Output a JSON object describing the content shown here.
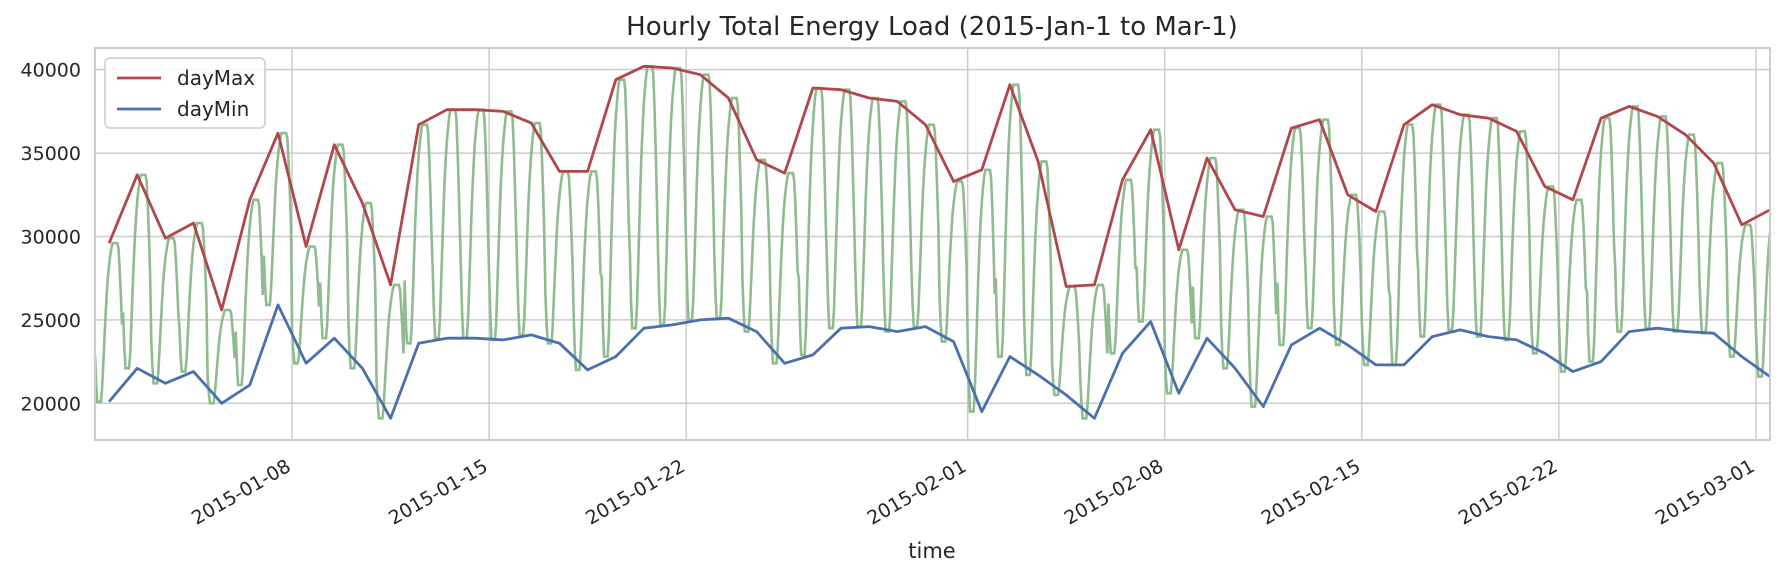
{
  "chart_data": {
    "type": "line",
    "title": "Hourly Total Energy Load (2015-Jan-1 to Mar-1)",
    "xlabel": "time",
    "ylabel": "",
    "xlim": [
      "2015-01-01T00:00",
      "2015-03-01T12:00"
    ],
    "ylim": [
      17800,
      41300
    ],
    "xticks": [
      "2015-01-08",
      "2015-01-15",
      "2015-01-22",
      "2015-02-01",
      "2015-02-08",
      "2015-02-15",
      "2015-02-22",
      "2015-03-01"
    ],
    "yticks": [
      20000,
      25000,
      30000,
      35000,
      40000
    ],
    "grid": true,
    "legend_position": "top-left",
    "colors": {
      "dayMax": "#b0474d",
      "dayMin": "#4c6fae",
      "hourly": "#8fbc8f",
      "grid": "#cccccc",
      "frame": "#cccccc",
      "text": "#262626"
    },
    "hourly_series": {
      "name": "",
      "color": "#8fbc8f",
      "description_note": "hourly load oscillating daily between dayMin and dayMax"
    },
    "series": [
      {
        "name": "dayMax",
        "color": "#b0474d",
        "x": [
          "2015-01-01",
          "2015-01-02",
          "2015-01-03",
          "2015-01-04",
          "2015-01-05",
          "2015-01-06",
          "2015-01-07",
          "2015-01-08",
          "2015-01-09",
          "2015-01-10",
          "2015-01-11",
          "2015-01-12",
          "2015-01-13",
          "2015-01-14",
          "2015-01-15",
          "2015-01-16",
          "2015-01-17",
          "2015-01-18",
          "2015-01-19",
          "2015-01-20",
          "2015-01-21",
          "2015-01-22",
          "2015-01-23",
          "2015-01-24",
          "2015-01-25",
          "2015-01-26",
          "2015-01-27",
          "2015-01-28",
          "2015-01-29",
          "2015-01-30",
          "2015-01-31",
          "2015-02-01",
          "2015-02-02",
          "2015-02-03",
          "2015-02-04",
          "2015-02-05",
          "2015-02-06",
          "2015-02-07",
          "2015-02-08",
          "2015-02-09",
          "2015-02-10",
          "2015-02-11",
          "2015-02-12",
          "2015-02-13",
          "2015-02-14",
          "2015-02-15",
          "2015-02-16",
          "2015-02-17",
          "2015-02-18",
          "2015-02-19",
          "2015-02-20",
          "2015-02-21",
          "2015-02-22",
          "2015-02-23",
          "2015-02-24",
          "2015-02-25",
          "2015-02-26",
          "2015-02-27",
          "2015-02-28",
          "2015-03-01"
        ],
        "values": [
          29600,
          33700,
          29900,
          30800,
          25600,
          32200,
          36200,
          29400,
          35500,
          32000,
          27100,
          36700,
          37600,
          37600,
          37500,
          36800,
          33900,
          33900,
          39400,
          40200,
          40100,
          39700,
          38300,
          34600,
          33800,
          38900,
          38800,
          38300,
          38100,
          36700,
          33300,
          34000,
          39100,
          34500,
          27000,
          27100,
          33400,
          36400,
          29200,
          34700,
          31600,
          31200,
          36500,
          37000,
          32500,
          31500,
          36700,
          37900,
          37300,
          37100,
          36300,
          33000,
          32200,
          37100,
          37800,
          37200,
          36100,
          34400,
          30700,
          31600
        ]
      },
      {
        "name": "dayMin",
        "color": "#4c6fae",
        "x": [
          "2015-01-01",
          "2015-01-02",
          "2015-01-03",
          "2015-01-04",
          "2015-01-05",
          "2015-01-06",
          "2015-01-07",
          "2015-01-08",
          "2015-01-09",
          "2015-01-10",
          "2015-01-11",
          "2015-01-12",
          "2015-01-13",
          "2015-01-14",
          "2015-01-15",
          "2015-01-16",
          "2015-01-17",
          "2015-01-18",
          "2015-01-19",
          "2015-01-20",
          "2015-01-21",
          "2015-01-22",
          "2015-01-23",
          "2015-01-24",
          "2015-01-25",
          "2015-01-26",
          "2015-01-27",
          "2015-01-28",
          "2015-01-29",
          "2015-01-30",
          "2015-01-31",
          "2015-02-01",
          "2015-02-02",
          "2015-02-03",
          "2015-02-04",
          "2015-02-05",
          "2015-02-06",
          "2015-02-07",
          "2015-02-08",
          "2015-02-09",
          "2015-02-10",
          "2015-02-11",
          "2015-02-12",
          "2015-02-13",
          "2015-02-14",
          "2015-02-15",
          "2015-02-16",
          "2015-02-17",
          "2015-02-18",
          "2015-02-19",
          "2015-02-20",
          "2015-02-21",
          "2015-02-22",
          "2015-02-23",
          "2015-02-24",
          "2015-02-25",
          "2015-02-26",
          "2015-02-27",
          "2015-02-28",
          "2015-03-01"
        ],
        "values": [
          20100,
          22100,
          21200,
          21900,
          20000,
          21100,
          25900,
          22400,
          23900,
          22100,
          19100,
          23600,
          23900,
          23900,
          23800,
          24100,
          23600,
          22000,
          22800,
          24500,
          24700,
          25000,
          25100,
          24300,
          22400,
          22900,
          24500,
          24600,
          24300,
          24600,
          23700,
          19500,
          22800,
          21700,
          20500,
          19100,
          23000,
          24900,
          20600,
          23900,
          22100,
          19800,
          23500,
          24500,
          23500,
          22300,
          22300,
          24000,
          24400,
          24000,
          23800,
          23000,
          21900,
          22500,
          24300,
          24500,
          24300,
          24200,
          22800,
          21600
        ]
      }
    ]
  }
}
